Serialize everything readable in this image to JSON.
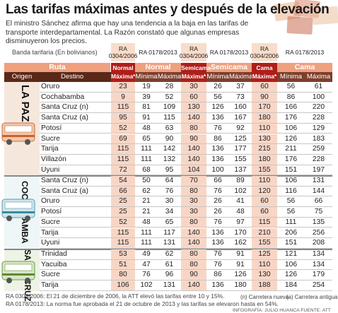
{
  "title": "Las tarifas máximas antes y después de la elevación",
  "intro": "El ministro Sánchez afirma que hay una tendencia a la baja en las tarifas de transporte interdepartamental. La Razón constató que algunas empresas disminuyeron los precios.",
  "band_label": "Banda tarifaria (En bolivianos)",
  "resolutions": {
    "old": "RA 0304/2006",
    "new": "RA 0178/2013"
  },
  "headers": {
    "ruta": "Ruta",
    "normal": "Normal",
    "semicama": "Semicama",
    "cama": "Cama",
    "origen": "Origen",
    "destino": "Destino",
    "normal_max": [
      "Normal",
      "Máxima*"
    ],
    "semicama_max": [
      "Semicama",
      "Máxima*"
    ],
    "cama_max": [
      "Cama",
      "Máxima*"
    ],
    "minima": "Mínima",
    "maxima": "Máxima"
  },
  "groups": [
    {
      "origin": "LA PAZ",
      "rows": [
        {
          "dest": "Oruro",
          "v": [
            23,
            19,
            28,
            30,
            26,
            37,
            60,
            56,
            61
          ]
        },
        {
          "dest": "Cochabamba",
          "v": [
            9,
            39,
            52,
            60,
            56,
            73,
            90,
            86,
            100
          ]
        },
        {
          "dest": "Santa Cruz (n)",
          "v": [
            115,
            81,
            109,
            130,
            126,
            160,
            170,
            166,
            220
          ]
        },
        {
          "dest": "Santa Cruz (a)",
          "v": [
            95,
            91,
            115,
            140,
            136,
            167,
            180,
            176,
            228
          ]
        },
        {
          "dest": "Potosí",
          "v": [
            52,
            48,
            63,
            80,
            76,
            92,
            110,
            106,
            129
          ]
        },
        {
          "dest": "Sucre",
          "v": [
            69,
            65,
            90,
            90,
            86,
            125,
            130,
            126,
            183
          ]
        },
        {
          "dest": "Tarija",
          "v": [
            115,
            111,
            142,
            140,
            136,
            177,
            215,
            211,
            259
          ]
        },
        {
          "dest": "Villazón",
          "v": [
            115,
            111,
            132,
            140,
            136,
            155,
            180,
            176,
            228
          ]
        },
        {
          "dest": "Uyuni",
          "v": [
            72,
            68,
            95,
            104,
            100,
            137,
            155,
            151,
            197
          ]
        }
      ]
    },
    {
      "origin": "COCHABAMBA",
      "rows": [
        {
          "dest": "Santa Cruz (n)",
          "v": [
            54,
            50,
            64,
            70,
            66,
            89,
            110,
            106,
            131
          ]
        },
        {
          "dest": "Santa Cruz (a)",
          "v": [
            66,
            62,
            76,
            80,
            76,
            102,
            120,
            116,
            144
          ]
        },
        {
          "dest": "Oruro",
          "v": [
            25,
            21,
            30,
            30,
            26,
            41,
            60,
            56,
            66
          ]
        },
        {
          "dest": "Potosí",
          "v": [
            25,
            21,
            34,
            30,
            26,
            48,
            60,
            56,
            75
          ]
        },
        {
          "dest": "Sucre",
          "v": [
            52,
            48,
            65,
            80,
            76,
            97,
            115,
            111,
            135
          ]
        },
        {
          "dest": "Tarija",
          "v": [
            115,
            111,
            117,
            140,
            136,
            170,
            210,
            206,
            256
          ]
        },
        {
          "dest": "Uyuni",
          "v": [
            115,
            111,
            131,
            140,
            136,
            162,
            155,
            151,
            208
          ]
        }
      ]
    },
    {
      "origin": "SANTA CRUZ",
      "rows": [
        {
          "dest": "Trinidad",
          "v": [
            53,
            49,
            62,
            80,
            76,
            91,
            125,
            121,
            134
          ]
        },
        {
          "dest": "Yacuiba",
          "v": [
            51,
            47,
            61,
            80,
            76,
            91,
            110,
            106,
            134
          ]
        },
        {
          "dest": "Sucre",
          "v": [
            80,
            76,
            96,
            90,
            86,
            126,
            130,
            126,
            179
          ]
        },
        {
          "dest": "Tarija",
          "v": [
            106,
            102,
            131,
            140,
            136,
            180,
            188,
            184,
            254
          ]
        }
      ]
    }
  ],
  "footnotes": [
    "RA 0304/2006: El 21 de diciembre de 2006, la ATT elevó las tarifas entre 10 y 15%.",
    "RA 0178/2013: La norma fue aprobada el 21 de octubre de 2013 y las tarifas se elevaron hasta en 54%."
  ],
  "legend": {
    "n": "(n) Carretera nueva",
    "a": "(a) Carretera antigua"
  },
  "credit": "INFOGRAFÍA: JULIO HUANCA FUENTE: ATT",
  "colors": {
    "accent": "#efa07f",
    "dark": "#7c3f2d",
    "max_red": "#ad1f1a",
    "old_fill": "#f8d6c6"
  }
}
